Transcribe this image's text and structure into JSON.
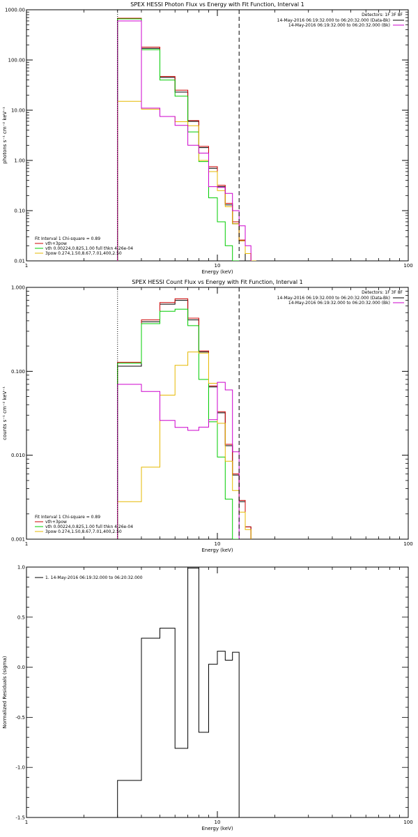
{
  "chart_data": [
    {
      "type": "line",
      "scale": {
        "x": "log",
        "y": "log"
      },
      "title": "SPEX HESSI Photon Flux vs Energy with Fit Function, Interval 1",
      "xlabel": "Energy (keV)",
      "ylabel": "photons s⁻¹ cm⁻² keV⁻¹",
      "xlim": [
        1,
        100
      ],
      "ylim": [
        0.01,
        1000
      ],
      "xticks": [
        {
          "v": 1,
          "label": "1"
        },
        {
          "v": 10,
          "label": "10"
        },
        {
          "v": 100,
          "label": "100"
        }
      ],
      "yticks": [
        {
          "v": 0.01,
          "label": "0.01"
        },
        {
          "v": 0.1,
          "label": "0.10"
        },
        {
          "v": 1,
          "label": "1.00"
        },
        {
          "v": 10,
          "label": "10.00"
        },
        {
          "v": 100,
          "label": "100.00"
        },
        {
          "v": 1000,
          "label": "1000.00"
        }
      ],
      "vlines": [
        {
          "x": 3.0,
          "style": "dotted"
        },
        {
          "x": 13.0,
          "style": "dashed"
        }
      ],
      "legend_right": {
        "detectors": "Detectors: 1F 3F 8F",
        "items": [
          {
            "label": "14-May-2016 06:19:32.000 to 06:20:32.000 (Data-Bk)",
            "color": "#000000"
          },
          {
            "label": "14-May-2016 06:19:32.000 to 06:20:32.000 (Bk)",
            "color": "#cc00cc"
          }
        ]
      },
      "legend_left": {
        "header": "Fit Interval 1   Chi-square = 0.89",
        "items": [
          {
            "label": "vth+3pow",
            "color": "#cc0000"
          },
          {
            "label": "vth 0.00224,0.825,1.00  full thkn 4.26e-04",
            "color": "#00cc00"
          },
          {
            "label": "3pow 0.274,1.50,8.67,7.01,400,2.50",
            "color": "#e6b800"
          }
        ]
      },
      "edges": [
        3,
        4,
        5,
        6,
        7,
        8,
        9,
        10,
        11,
        12,
        13,
        14,
        15,
        16
      ],
      "series": [
        {
          "color": "#000000",
          "values": [
            600,
            170,
            45,
            23,
            6.0,
            1.8,
            0.7,
            0.3,
            0.13,
            0.055,
            0.025
          ]
        },
        {
          "color": "#cc0000",
          "values": [
            680,
            180,
            47,
            25,
            6.2,
            1.9,
            0.75,
            0.32,
            0.14,
            0.06,
            0.026,
            0.014,
            0.01
          ]
        },
        {
          "color": "#00cc00",
          "values": [
            660,
            160,
            40,
            19,
            3.7,
            0.95,
            0.18,
            0.06,
            0.02,
            0.01
          ]
        },
        {
          "color": "#e6b800",
          "values": [
            15,
            10.5,
            7.5,
            5.9,
            4.9,
            1.0,
            0.6,
            0.25,
            0.12,
            0.055,
            0.025,
            0.014,
            0.01
          ]
        },
        {
          "color": "#cc00cc",
          "values": [
            600,
            11,
            7.5,
            5.0,
            2.0,
            1.4,
            0.3,
            0.29,
            0.22,
            0.1,
            0.05,
            0.02
          ]
        }
      ]
    },
    {
      "type": "line",
      "scale": {
        "x": "log",
        "y": "log"
      },
      "title": "SPEX HESSI Count Flux vs Energy with Fit Function, Interval 1",
      "xlabel": "Energy (keV)",
      "ylabel": "counts s⁻¹ cm⁻² keV⁻¹",
      "xlim": [
        1,
        100
      ],
      "ylim": [
        0.001,
        1
      ],
      "xticks": [
        {
          "v": 1,
          "label": "1"
        },
        {
          "v": 10,
          "label": "10"
        },
        {
          "v": 100,
          "label": "100"
        }
      ],
      "yticks": [
        {
          "v": 0.001,
          "label": "0.001"
        },
        {
          "v": 0.01,
          "label": "0.010"
        },
        {
          "v": 0.1,
          "label": "0.100"
        },
        {
          "v": 1,
          "label": "1.000"
        }
      ],
      "vlines": [
        {
          "x": 3.0,
          "style": "dotted"
        },
        {
          "x": 13.0,
          "style": "dashed"
        }
      ],
      "legend_right": {
        "detectors": "Detectors: 1F 3F 8F",
        "items": [
          {
            "label": "14-May-2016 06:19:32.000 to 06:20:32.000 (Data-Bk)",
            "color": "#000000"
          },
          {
            "label": "14-May-2016 06:19:32.000 to 06:20:32.000 (Bk)",
            "color": "#cc00cc"
          }
        ]
      },
      "legend_left": {
        "header": "Fit Interval 1   Chi-square = 0.89",
        "items": [
          {
            "label": "vth+3pow",
            "color": "#cc0000"
          },
          {
            "label": "vth 0.00224,0.825,1.00  full thkn 4.26e-04",
            "color": "#00cc00"
          },
          {
            "label": "3pow 0.274,1.50,8.67,7.01,400,2.50",
            "color": "#e6b800"
          }
        ]
      },
      "edges": [
        3,
        4,
        5,
        6,
        7,
        8,
        9,
        10,
        11,
        12,
        13,
        14,
        15,
        16
      ],
      "series": [
        {
          "color": "#000000",
          "values": [
            0.115,
            0.39,
            0.63,
            0.7,
            0.41,
            0.17,
            0.065,
            0.032,
            0.013,
            0.0058,
            0.0028,
            0.0014
          ]
        },
        {
          "color": "#cc0000",
          "values": [
            0.128,
            0.41,
            0.66,
            0.73,
            0.43,
            0.175,
            0.067,
            0.033,
            0.0135,
            0.006,
            0.0029,
            0.0014
          ]
        },
        {
          "color": "#00cc00",
          "values": [
            0.125,
            0.37,
            0.52,
            0.55,
            0.35,
            0.08,
            0.025,
            0.0095,
            0.003,
            0.001
          ]
        },
        {
          "color": "#e6b800",
          "values": [
            0.0028,
            0.0072,
            0.052,
            0.118,
            0.17,
            0.165,
            0.072,
            0.024,
            0.0085,
            0.0038,
            0.0021,
            0.0013
          ]
        },
        {
          "color": "#cc00cc",
          "values": [
            0.07,
            0.0575,
            0.026,
            0.0215,
            0.0198,
            0.0216,
            0.0265,
            0.074,
            0.06,
            0.011
          ]
        }
      ]
    },
    {
      "type": "line",
      "scale": {
        "x": "log",
        "y": "linear"
      },
      "title": "",
      "xlabel": "Energy (keV)",
      "ylabel": "Normalized Residuals (sigma)",
      "xlim": [
        1,
        100
      ],
      "ylim": [
        -1.5,
        1.0
      ],
      "xticks": [
        {
          "v": 1,
          "label": "1"
        },
        {
          "v": 10,
          "label": "10"
        },
        {
          "v": 100,
          "label": "100"
        }
      ],
      "yticks": [
        {
          "v": -1.5,
          "label": "-1.5"
        },
        {
          "v": -1.0,
          "label": "-1.0"
        },
        {
          "v": -0.5,
          "label": "-0.5"
        },
        {
          "v": 0.0,
          "label": "0.0"
        },
        {
          "v": 0.5,
          "label": "0.5"
        },
        {
          "v": 1.0,
          "label": "1.0"
        }
      ],
      "vlines": [],
      "legend_left": {
        "items": [
          {
            "label": "1. 14-May-2016 06:19:32.000 to 06:20:32.000",
            "color": "#000000"
          }
        ]
      },
      "edges": [
        3,
        4,
        5,
        6,
        7,
        8,
        9,
        10,
        11,
        12,
        13
      ],
      "series": [
        {
          "color": "#000000",
          "values": [
            -1.13,
            0.29,
            0.39,
            -0.81,
            0.99,
            -0.65,
            0.03,
            0.16,
            0.07,
            0.15
          ]
        }
      ]
    }
  ]
}
